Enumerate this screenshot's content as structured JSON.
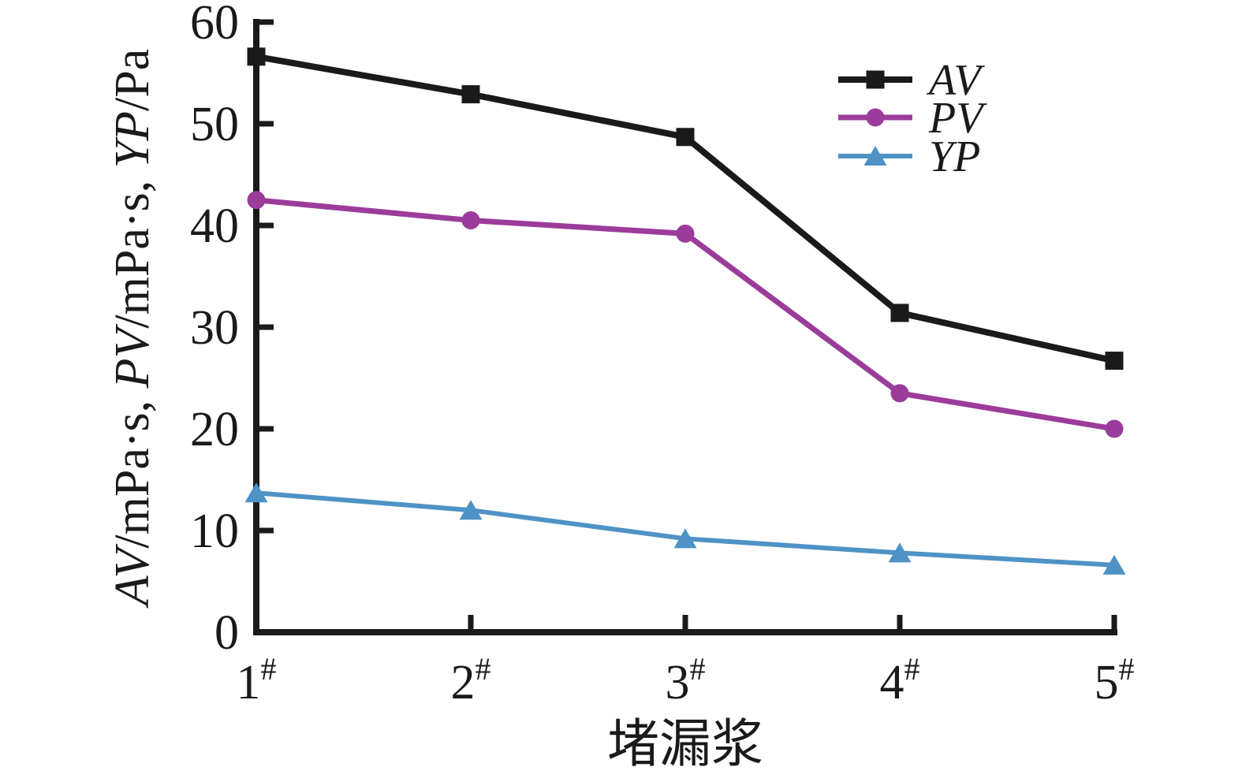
{
  "chart_data": {
    "type": "line",
    "title": "",
    "xlabel": "堵漏浆",
    "ylabel_segments": [
      {
        "text": "AV",
        "italic": true
      },
      {
        "text": "/mPa·s, ",
        "italic": false
      },
      {
        "text": "PV",
        "italic": true
      },
      {
        "text": "/mPa·s, ",
        "italic": false
      },
      {
        "text": "YP",
        "italic": true
      },
      {
        "text": "/Pa",
        "italic": false
      }
    ],
    "categories": [
      {
        "base": "1",
        "sup": "#"
      },
      {
        "base": "2",
        "sup": "#"
      },
      {
        "base": "3",
        "sup": "#"
      },
      {
        "base": "4",
        "sup": "#"
      },
      {
        "base": "5",
        "sup": "#"
      }
    ],
    "ylim": [
      0,
      60
    ],
    "yticks": [
      0,
      10,
      20,
      30,
      40,
      50,
      60
    ],
    "grid": false,
    "legend_position": "top-right",
    "axis_color": "#1a1a1a",
    "series": [
      {
        "name": "AV",
        "marker": "square",
        "color": "#1a1a1a",
        "values": [
          56.6,
          52.9,
          48.7,
          31.4,
          26.7
        ]
      },
      {
        "name": "PV",
        "marker": "circle",
        "color": "#9b3c9b",
        "values": [
          42.5,
          40.5,
          39.2,
          23.5,
          20.0
        ]
      },
      {
        "name": "YP",
        "marker": "triangle",
        "color": "#4e92c6",
        "values": [
          13.7,
          12.0,
          9.2,
          7.8,
          6.6
        ]
      }
    ]
  }
}
